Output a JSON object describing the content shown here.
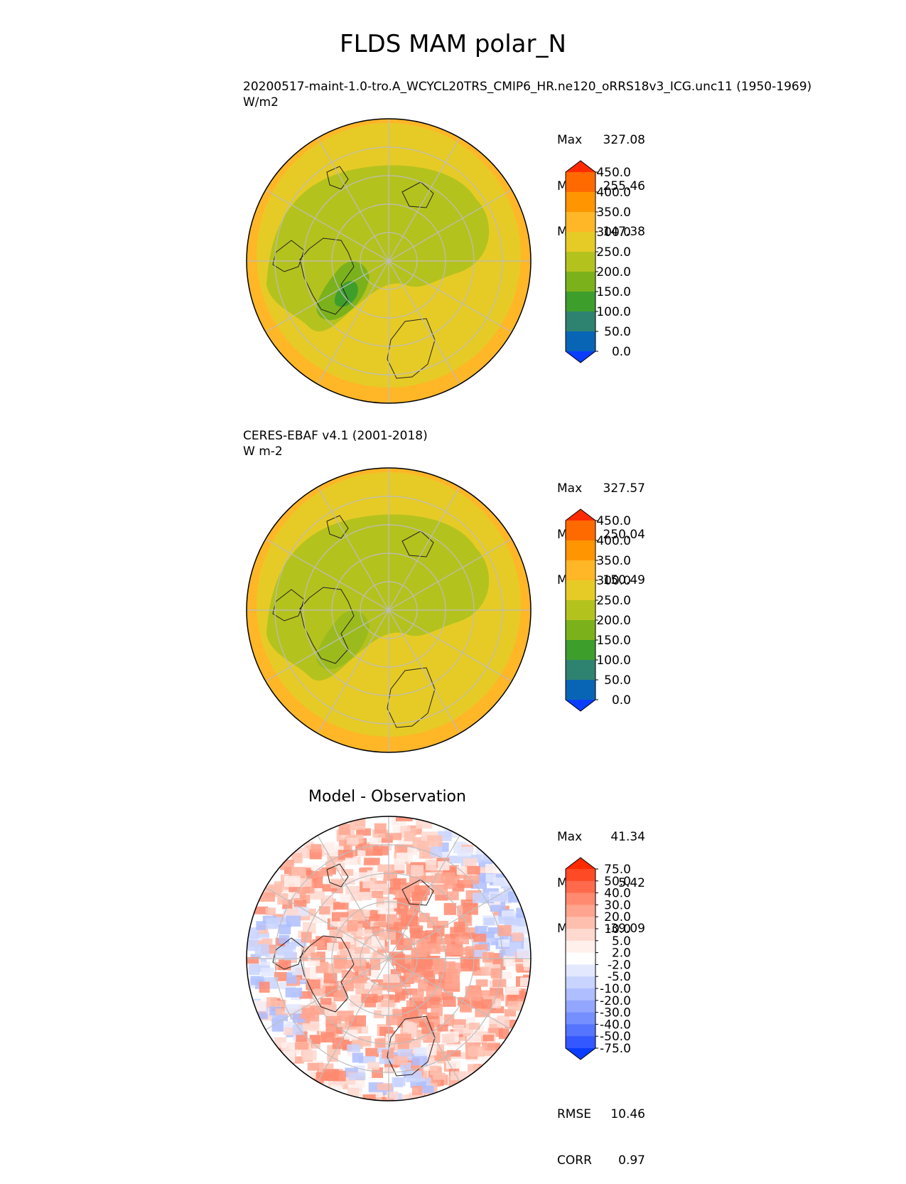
{
  "figure_title": "FLDS MAM polar_N",
  "panels": [
    {
      "subtitle": "20200517-maint-1.0-tro.A_WCYCL20TRS_CMIP6_HR.ne120_oRRS18v3_ICG.unc11 (1950-1969)",
      "units": "W/m2",
      "stats": [
        {
          "label": "Max",
          "value": "327.08"
        },
        {
          "label": "Mean",
          "value": "255.46"
        },
        {
          "label": "Min",
          "value": "147.38"
        }
      ]
    },
    {
      "subtitle": "CERES-EBAF v4.1 (2001-2018)",
      "units": "W m-2",
      "stats": [
        {
          "label": "Max",
          "value": "327.57"
        },
        {
          "label": "Mean",
          "value": "250.04"
        },
        {
          "label": "Min",
          "value": "150.49"
        }
      ]
    },
    {
      "title": "Model - Observation",
      "stats": [
        {
          "label": "Max",
          "value": "41.34"
        },
        {
          "label": "Mean",
          "value": "5.42"
        },
        {
          "label": "Min",
          "value": "-39.09"
        }
      ],
      "metrics": [
        {
          "label": "RMSE",
          "value": "10.46"
        },
        {
          "label": "CORR",
          "value": "0.97"
        }
      ]
    }
  ],
  "chart_data": [
    {
      "type": "heatmap",
      "projection": "north polar stereographic",
      "title": "20200517-maint-1.0-tro.A_WCYCL20TRS_CMIP6_HR.ne120_oRRS18v3_ICG.unc11 (1950-1969)",
      "units": "W/m2",
      "colorbar": {
        "levels": [
          "450.0",
          "400.0",
          "350.0",
          "300.0",
          "250.0",
          "200.0",
          "150.0",
          "100.0",
          "50.0",
          "0.0"
        ],
        "colors": [
          "#ff2a00",
          "#ff6a00",
          "#ff9500",
          "#ffb627",
          "#e6cb26",
          "#b4c21e",
          "#7bb21b",
          "#3e9e2c",
          "#2e8270",
          "#0865b5",
          "#0a3dff"
        ],
        "extend": "both"
      },
      "stats": {
        "max": 327.08,
        "mean": 255.46,
        "min": 147.38
      }
    },
    {
      "type": "heatmap",
      "projection": "north polar stereographic",
      "title": "CERES-EBAF v4.1 (2001-2018)",
      "units": "W m-2",
      "colorbar": {
        "levels": [
          "450.0",
          "400.0",
          "350.0",
          "300.0",
          "250.0",
          "200.0",
          "150.0",
          "100.0",
          "50.0",
          "0.0"
        ],
        "colors": [
          "#ff2a00",
          "#ff6a00",
          "#ff9500",
          "#ffb627",
          "#e6cb26",
          "#b4c21e",
          "#7bb21b",
          "#3e9e2c",
          "#2e8270",
          "#0865b5",
          "#0a3dff"
        ],
        "extend": "both"
      },
      "stats": {
        "max": 327.57,
        "mean": 250.04,
        "min": 150.49
      }
    },
    {
      "type": "heatmap",
      "projection": "north polar stereographic",
      "title": "Model - Observation",
      "colorbar": {
        "levels": [
          "75.0",
          "50.0",
          "40.0",
          "30.0",
          "20.0",
          "10.0",
          "5.0",
          "2.0",
          "-2.0",
          "-5.0",
          "-10.0",
          "-20.0",
          "-30.0",
          "-40.0",
          "-50.0",
          "-75.0"
        ],
        "colors": [
          "#ff2a00",
          "#ff4a26",
          "#ff6a4d",
          "#ff8a70",
          "#ffa48e",
          "#ffbfae",
          "#ffd8cf",
          "#fff0ec",
          "#ffffff",
          "#e3e8ff",
          "#c8d3ff",
          "#aebeff",
          "#92a6ff",
          "#768fff",
          "#5574ff",
          "#3358ff",
          "#0a3dff"
        ],
        "extend": "both"
      },
      "stats": {
        "max": 41.34,
        "mean": 5.42,
        "min": -39.09,
        "rmse": 10.46,
        "corr": 0.97
      }
    }
  ]
}
